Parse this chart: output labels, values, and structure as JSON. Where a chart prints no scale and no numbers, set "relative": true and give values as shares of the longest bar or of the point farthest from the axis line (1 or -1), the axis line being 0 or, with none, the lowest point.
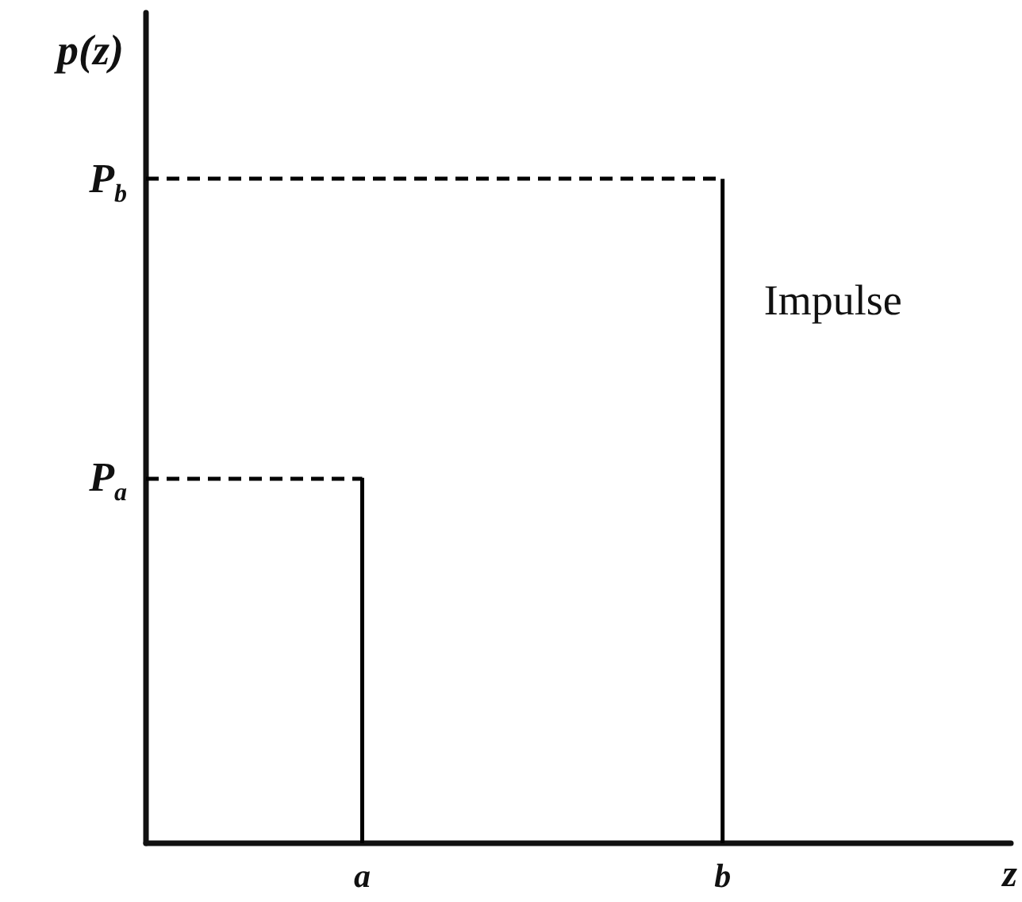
{
  "chart_data": {
    "type": "bar",
    "relative": true,
    "categories": [
      null,
      null,
      null,
      "a",
      null,
      null,
      null,
      null,
      "b",
      null,
      null,
      null,
      null
    ],
    "values": [
      null,
      null,
      null,
      0.55,
      null,
      null,
      null,
      null,
      1,
      null,
      null,
      null,
      null
    ],
    "color": "#000000",
    "xlabel": "z",
    "ylabel": "p(z)",
    "ref_lines": [
      {
        "axis": "y",
        "value": 0.55,
        "label": "P$_{a}$",
        "line_style": "dashed",
        "color": "#000000"
      },
      {
        "axis": "y",
        "value": 1,
        "label": "P$_{b}$",
        "line_style": "dashed",
        "color": "#000000"
      }
    ],
    "annotations": [
      "Impulse"
    ]
  }
}
